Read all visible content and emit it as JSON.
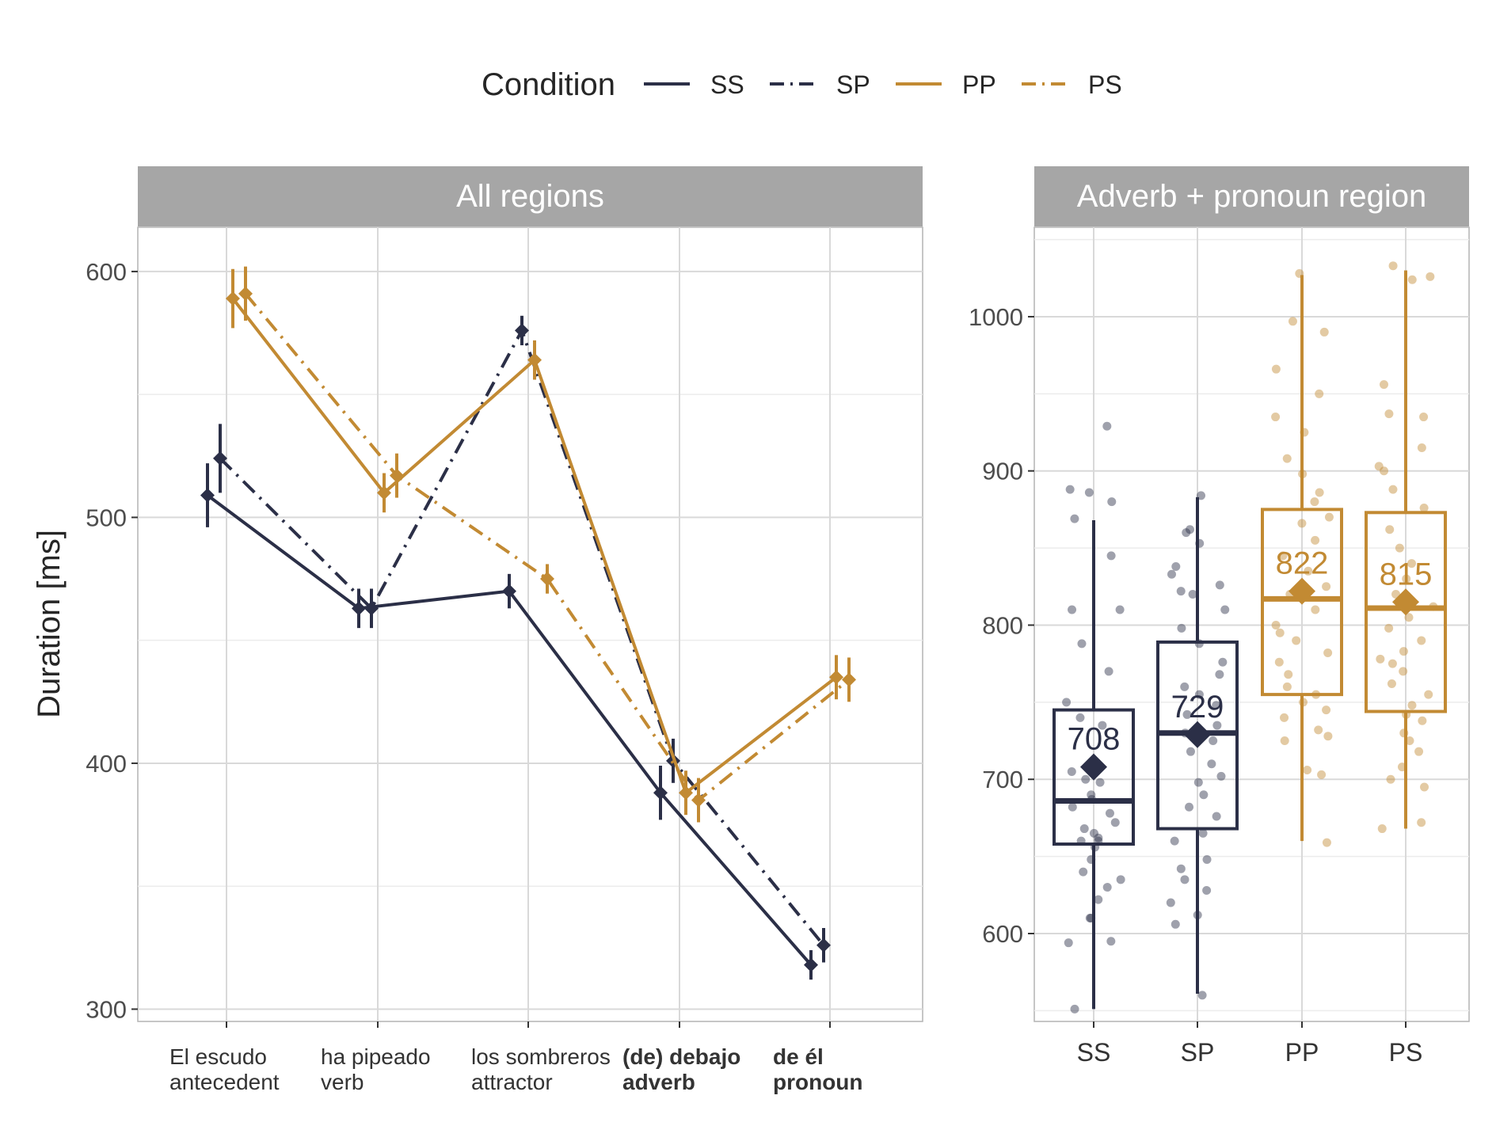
{
  "legend": {
    "title": "Condition",
    "items": [
      {
        "label": "SS",
        "color": "#2b2f47",
        "dash": "solid"
      },
      {
        "label": "SP",
        "color": "#2b2f47",
        "dash": "dotdash"
      },
      {
        "label": "PP",
        "color": "#c28a33",
        "dash": "solid"
      },
      {
        "label": "PS",
        "color": "#c28a33",
        "dash": "dotdash"
      }
    ]
  },
  "colors": {
    "dark": "#2b2f47",
    "gold": "#c28a33",
    "strip": "#a6a6a6",
    "grid": "#d9d9d9"
  },
  "chart_data": [
    {
      "type": "line",
      "title": "All regions",
      "ylabel": "Duration [ms]",
      "ylim": [
        295,
        618
      ],
      "yticks": [
        300,
        400,
        500,
        600
      ],
      "categories": [
        {
          "word": "El escudo",
          "role": "antecedent",
          "bold": false
        },
        {
          "word": "ha pipeado",
          "role": "verb",
          "bold": false
        },
        {
          "word": "los sombreros",
          "role": "attractor",
          "bold": false
        },
        {
          "word": "(de) debajo",
          "role": "adverb",
          "bold": true
        },
        {
          "word": "de él",
          "role": "pronoun",
          "bold": true
        }
      ],
      "series": [
        {
          "name": "SS",
          "values": [
            509,
            463,
            470,
            388,
            318
          ],
          "errors": [
            13,
            8,
            7,
            11,
            6
          ]
        },
        {
          "name": "SP",
          "values": [
            524,
            463,
            576,
            401,
            326
          ],
          "errors": [
            14,
            8,
            6,
            9,
            7
          ]
        },
        {
          "name": "PP",
          "values": [
            589,
            510,
            564,
            388,
            435
          ],
          "errors": [
            12,
            8,
            8,
            9,
            9
          ]
        },
        {
          "name": "PS",
          "values": [
            591,
            517,
            475,
            385,
            434
          ],
          "errors": [
            11,
            9,
            6,
            9,
            9
          ]
        }
      ]
    },
    {
      "type": "box",
      "title": "Adverb + pronoun region",
      "ylim": [
        543,
        1058
      ],
      "yticks": [
        600,
        700,
        800,
        900,
        1000
      ],
      "categories": [
        "SS",
        "SP",
        "PP",
        "PS"
      ],
      "boxes": [
        {
          "name": "SS",
          "min": 551,
          "q1": 658,
          "median": 686,
          "q3": 745,
          "max": 868,
          "mean": 708,
          "mean_label": "708",
          "points": [
            929,
            888,
            886,
            880,
            869,
            845,
            810,
            810,
            788,
            770,
            750,
            740,
            735,
            712,
            705,
            700,
            698,
            690,
            687,
            682,
            678,
            672,
            668,
            665,
            662,
            660,
            660,
            656,
            648,
            640,
            635,
            630,
            622,
            610,
            610,
            595,
            594,
            551
          ]
        },
        {
          "name": "SP",
          "min": 561,
          "q1": 668,
          "median": 730,
          "q3": 789,
          "max": 883,
          "mean": 729,
          "mean_label": "729",
          "points": [
            884,
            862,
            860,
            853,
            838,
            833,
            826,
            822,
            820,
            810,
            798,
            788,
            776,
            768,
            760,
            755,
            748,
            742,
            735,
            730,
            725,
            718,
            710,
            702,
            698,
            690,
            682,
            676,
            665,
            660,
            648,
            642,
            635,
            628,
            620,
            612,
            606,
            560
          ]
        },
        {
          "name": "PP",
          "min": 660,
          "q1": 755,
          "median": 817,
          "q3": 875,
          "max": 1027,
          "mean": 822,
          "mean_label": "822",
          "points": [
            1028,
            997,
            990,
            966,
            950,
            935,
            925,
            908,
            898,
            886,
            880,
            870,
            866,
            855,
            845,
            835,
            825,
            820,
            810,
            800,
            795,
            790,
            782,
            776,
            768,
            760,
            755,
            750,
            745,
            740,
            732,
            728,
            725,
            706,
            703,
            659
          ]
        },
        {
          "name": "PS",
          "min": 668,
          "q1": 744,
          "median": 811,
          "q3": 873,
          "max": 1030,
          "mean": 815,
          "mean_label": "815",
          "points": [
            1033,
            1026,
            1024,
            956,
            937,
            935,
            915,
            903,
            900,
            888,
            876,
            862,
            850,
            840,
            830,
            820,
            812,
            805,
            798,
            790,
            783,
            778,
            775,
            770,
            762,
            755,
            748,
            742,
            738,
            730,
            725,
            718,
            708,
            700,
            695,
            672,
            668
          ]
        }
      ]
    }
  ]
}
